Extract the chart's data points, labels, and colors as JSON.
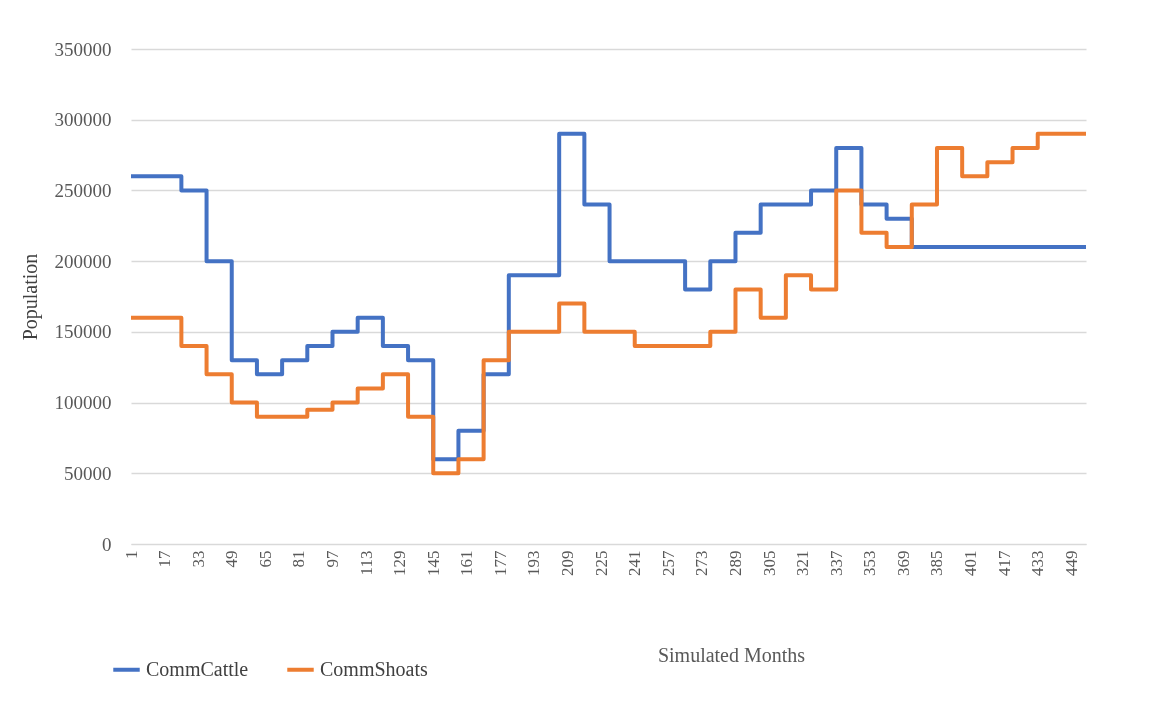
{
  "chart_data": {
    "type": "step",
    "xlabel": "Simulated Months",
    "ylabel": "Population",
    "x": [
      1,
      13,
      25,
      37,
      49,
      61,
      73,
      85,
      97,
      109,
      121,
      133,
      145,
      157,
      169,
      181,
      193,
      205,
      217,
      229,
      241,
      253,
      265,
      277,
      289,
      301,
      313,
      325,
      337,
      349,
      361,
      373,
      385,
      397,
      409,
      421,
      433,
      445,
      456
    ],
    "series": [
      {
        "name": "CommCattle",
        "color": "#4472c4",
        "values": [
          260000,
          260000,
          250000,
          200000,
          130000,
          120000,
          130000,
          140000,
          150000,
          160000,
          140000,
          130000,
          60000,
          80000,
          120000,
          190000,
          190000,
          290000,
          240000,
          200000,
          200000,
          200000,
          180000,
          200000,
          220000,
          240000,
          240000,
          250000,
          280000,
          240000,
          230000,
          210000,
          210000,
          210000,
          210000,
          210000,
          210000,
          210000,
          210000
        ]
      },
      {
        "name": "CommShoats",
        "color": "#ed7d31",
        "values": [
          160000,
          160000,
          140000,
          120000,
          100000,
          90000,
          90000,
          95000,
          100000,
          110000,
          120000,
          90000,
          50000,
          60000,
          130000,
          150000,
          150000,
          170000,
          150000,
          150000,
          140000,
          140000,
          140000,
          150000,
          180000,
          160000,
          190000,
          180000,
          250000,
          220000,
          210000,
          240000,
          280000,
          260000,
          270000,
          280000,
          290000,
          290000,
          290000
        ]
      }
    ],
    "xlim": [
      1,
      456
    ],
    "xticks": [
      1,
      17,
      33,
      49,
      65,
      81,
      97,
      113,
      129,
      145,
      161,
      177,
      193,
      209,
      225,
      241,
      257,
      273,
      289,
      305,
      321,
      337,
      353,
      369,
      385,
      401,
      417,
      433,
      449
    ],
    "ylim": [
      0,
      350000
    ],
    "yticks": [
      0,
      50000,
      100000,
      150000,
      200000,
      250000,
      300000,
      350000
    ],
    "grid": "y",
    "legend": "bottom left",
    "line_style": "solid"
  }
}
